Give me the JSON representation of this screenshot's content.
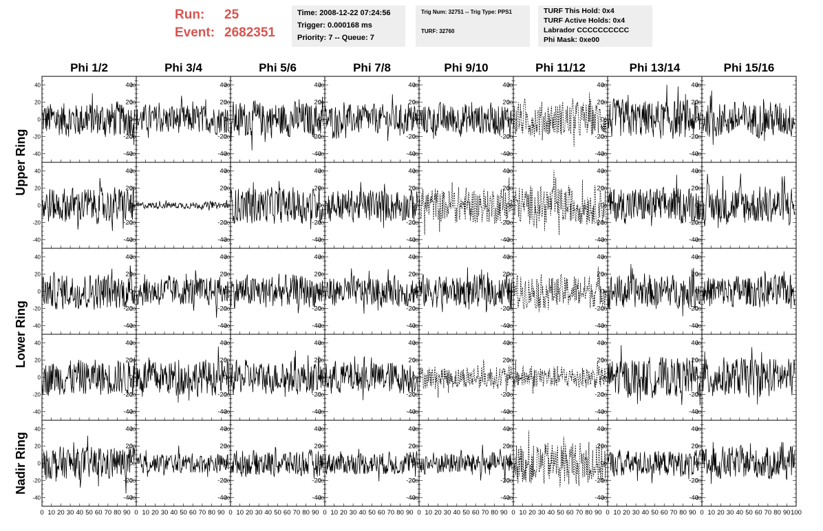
{
  "header": {
    "run_label": "Run:",
    "run_value": "25",
    "event_label": "Event:",
    "event_value": "2682351",
    "time": "Time: 2008-12-22 07:24:56",
    "trigger": "Trigger: 0.000168 ms",
    "priority": "Priority: 7 -- Queue: 7",
    "trig_num": "Trig Num: 32751 -- Trig Type: PPS1",
    "turf": "TURF: 32760",
    "turf_this_hold": "TURF This Hold: 0x4",
    "turf_active_holds": "TURF Active Holds: 0x4",
    "labrador": "Labrador CCCCCCCCCC",
    "phi_mask": "Phi Mask: 0xe00"
  },
  "chart_data": {
    "type": "line",
    "columns": [
      "Phi 1/2",
      "Phi 3/4",
      "Phi 5/6",
      "Phi 7/8",
      "Phi 9/10",
      "Phi 11/12",
      "Phi 13/14",
      "Phi 15/16"
    ],
    "ring_labels": [
      "Upper Ring",
      "Lower Ring",
      "Nadir Ring"
    ],
    "y_ticks": [
      -40,
      -20,
      0,
      20,
      40
    ],
    "x_ticks": [
      0,
      10,
      20,
      30,
      40,
      50,
      60,
      70,
      80,
      90,
      100
    ],
    "ylim": [
      -50,
      50
    ],
    "xlim": [
      0,
      100
    ],
    "dashed_panels": [
      [
        0,
        5
      ],
      [
        1,
        4
      ],
      [
        1,
        5
      ],
      [
        2,
        5
      ],
      [
        3,
        4
      ],
      [
        3,
        5
      ],
      [
        4,
        5
      ]
    ],
    "amplitudes": [
      [
        22,
        18,
        22,
        18,
        20,
        22,
        24,
        22
      ],
      [
        22,
        4,
        22,
        20,
        22,
        24,
        22,
        24
      ],
      [
        22,
        18,
        20,
        18,
        20,
        20,
        20,
        20
      ],
      [
        22,
        22,
        20,
        20,
        14,
        14,
        24,
        24
      ],
      [
        20,
        12,
        16,
        14,
        14,
        26,
        16,
        20
      ]
    ]
  }
}
